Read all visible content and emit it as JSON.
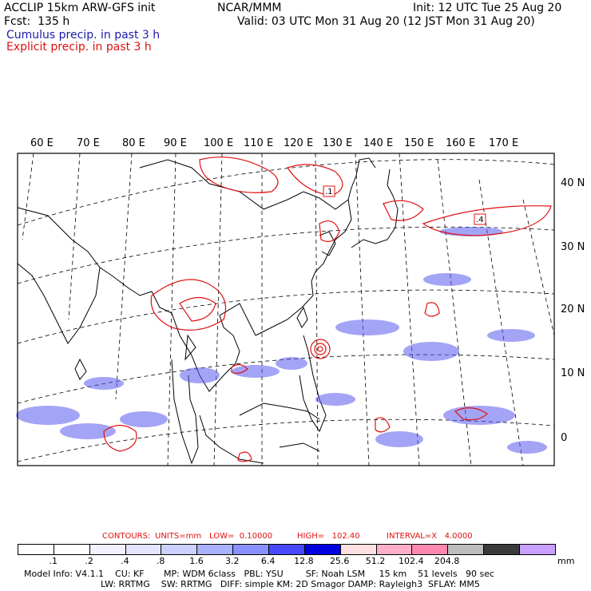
{
  "header": {
    "left1": "ACCLIP 15km ARW-GFS init",
    "center1": "NCAR/MMM",
    "right1": "Init: 12 UTC Tue 25 Aug 20",
    "left2": "Fcst:  135 h",
    "right2": "Valid: 03 UTC Mon 31 Aug 20 (12 JST Mon 31 Aug 20)",
    "cumulus": "Cumulus precip. in past 3 h",
    "explicit": "Explicit precip. in past 3 h"
  },
  "colors": {
    "cumulus": "#2b2bd6",
    "explicit": "#e01010"
  },
  "map": {
    "lon_labels": [
      "60 E",
      "70 E",
      "80 E",
      "90 E",
      "100 E",
      "110 E",
      "120 E",
      "130 E",
      "140 E",
      "150 E",
      "160 E",
      "170 E"
    ],
    "lat_labels": [
      "40 N",
      "30 N",
      "20 N",
      "10 N",
      "0"
    ],
    "marker_labels": [
      ".1",
      ".4"
    ]
  },
  "contours": {
    "title": "CONTOURS:",
    "units": "UNITS=mm",
    "low": "LOW=  0.10000",
    "high": "HIGH=   102.40",
    "interval": "INTERVAL=X   4.0000"
  },
  "colorbar": {
    "colors": [
      "#ffffff",
      "#ffffff",
      "#f2f2ff",
      "#e3e5ff",
      "#ccd0ff",
      "#aab1ff",
      "#8a90ff",
      "#4848ff",
      "#0000e0",
      "#ffe0e0",
      "#ffb0c8",
      "#ff88b0",
      "#bdbdbd",
      "#3a3a3a",
      "#c8a0ff"
    ],
    "labels": [
      ".1",
      ".2",
      ".4",
      ".8",
      "1.6",
      "3.2",
      "6.4",
      "12.8",
      "25.6",
      "51.2",
      "102.4",
      "204.8"
    ],
    "unit": "mm"
  },
  "footer": {
    "line1": "Model Info: V4.1.1    CU: KF       MP: WDM 6class   PBL: YSU        SF: Noah LSM     15 km    51 levels   90 sec",
    "line2": "LW: RRTMG    SW: RRTMG   DIFF: simple KM: 2D Smagor DAMP: Rayleigh3  SFLAY: MM5"
  }
}
